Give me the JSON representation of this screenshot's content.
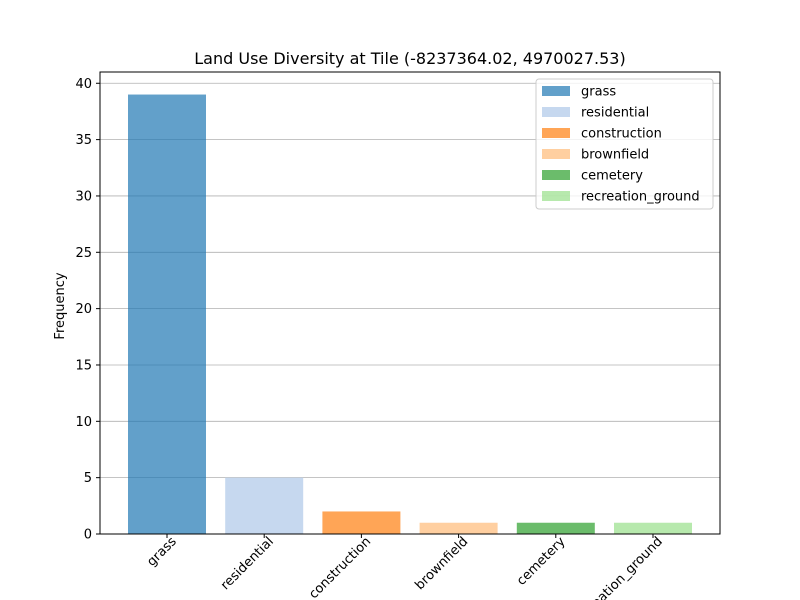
{
  "chart_data": {
    "type": "bar",
    "title": "Land Use Diversity at Tile (-8237364.02, 4970027.53)",
    "xlabel": "",
    "ylabel": "Frequency",
    "categories": [
      "grass",
      "residential",
      "construction",
      "brownfield",
      "cemetery",
      "recreation_ground"
    ],
    "values": [
      39,
      5,
      2,
      1,
      1,
      1
    ],
    "colors": [
      "#1f77b4",
      "#aec7e8",
      "#ff7f0e",
      "#ffbb78",
      "#2ca02c",
      "#98df8a"
    ],
    "bar_opacity": 0.7,
    "ylim": [
      0,
      41
    ],
    "yticks": [
      0,
      5,
      10,
      15,
      20,
      25,
      30,
      35,
      40
    ],
    "grid": "y",
    "legend": {
      "position": "top-right",
      "entries": [
        "grass",
        "residential",
        "construction",
        "brownfield",
        "cemetery",
        "recreation_ground"
      ]
    }
  }
}
